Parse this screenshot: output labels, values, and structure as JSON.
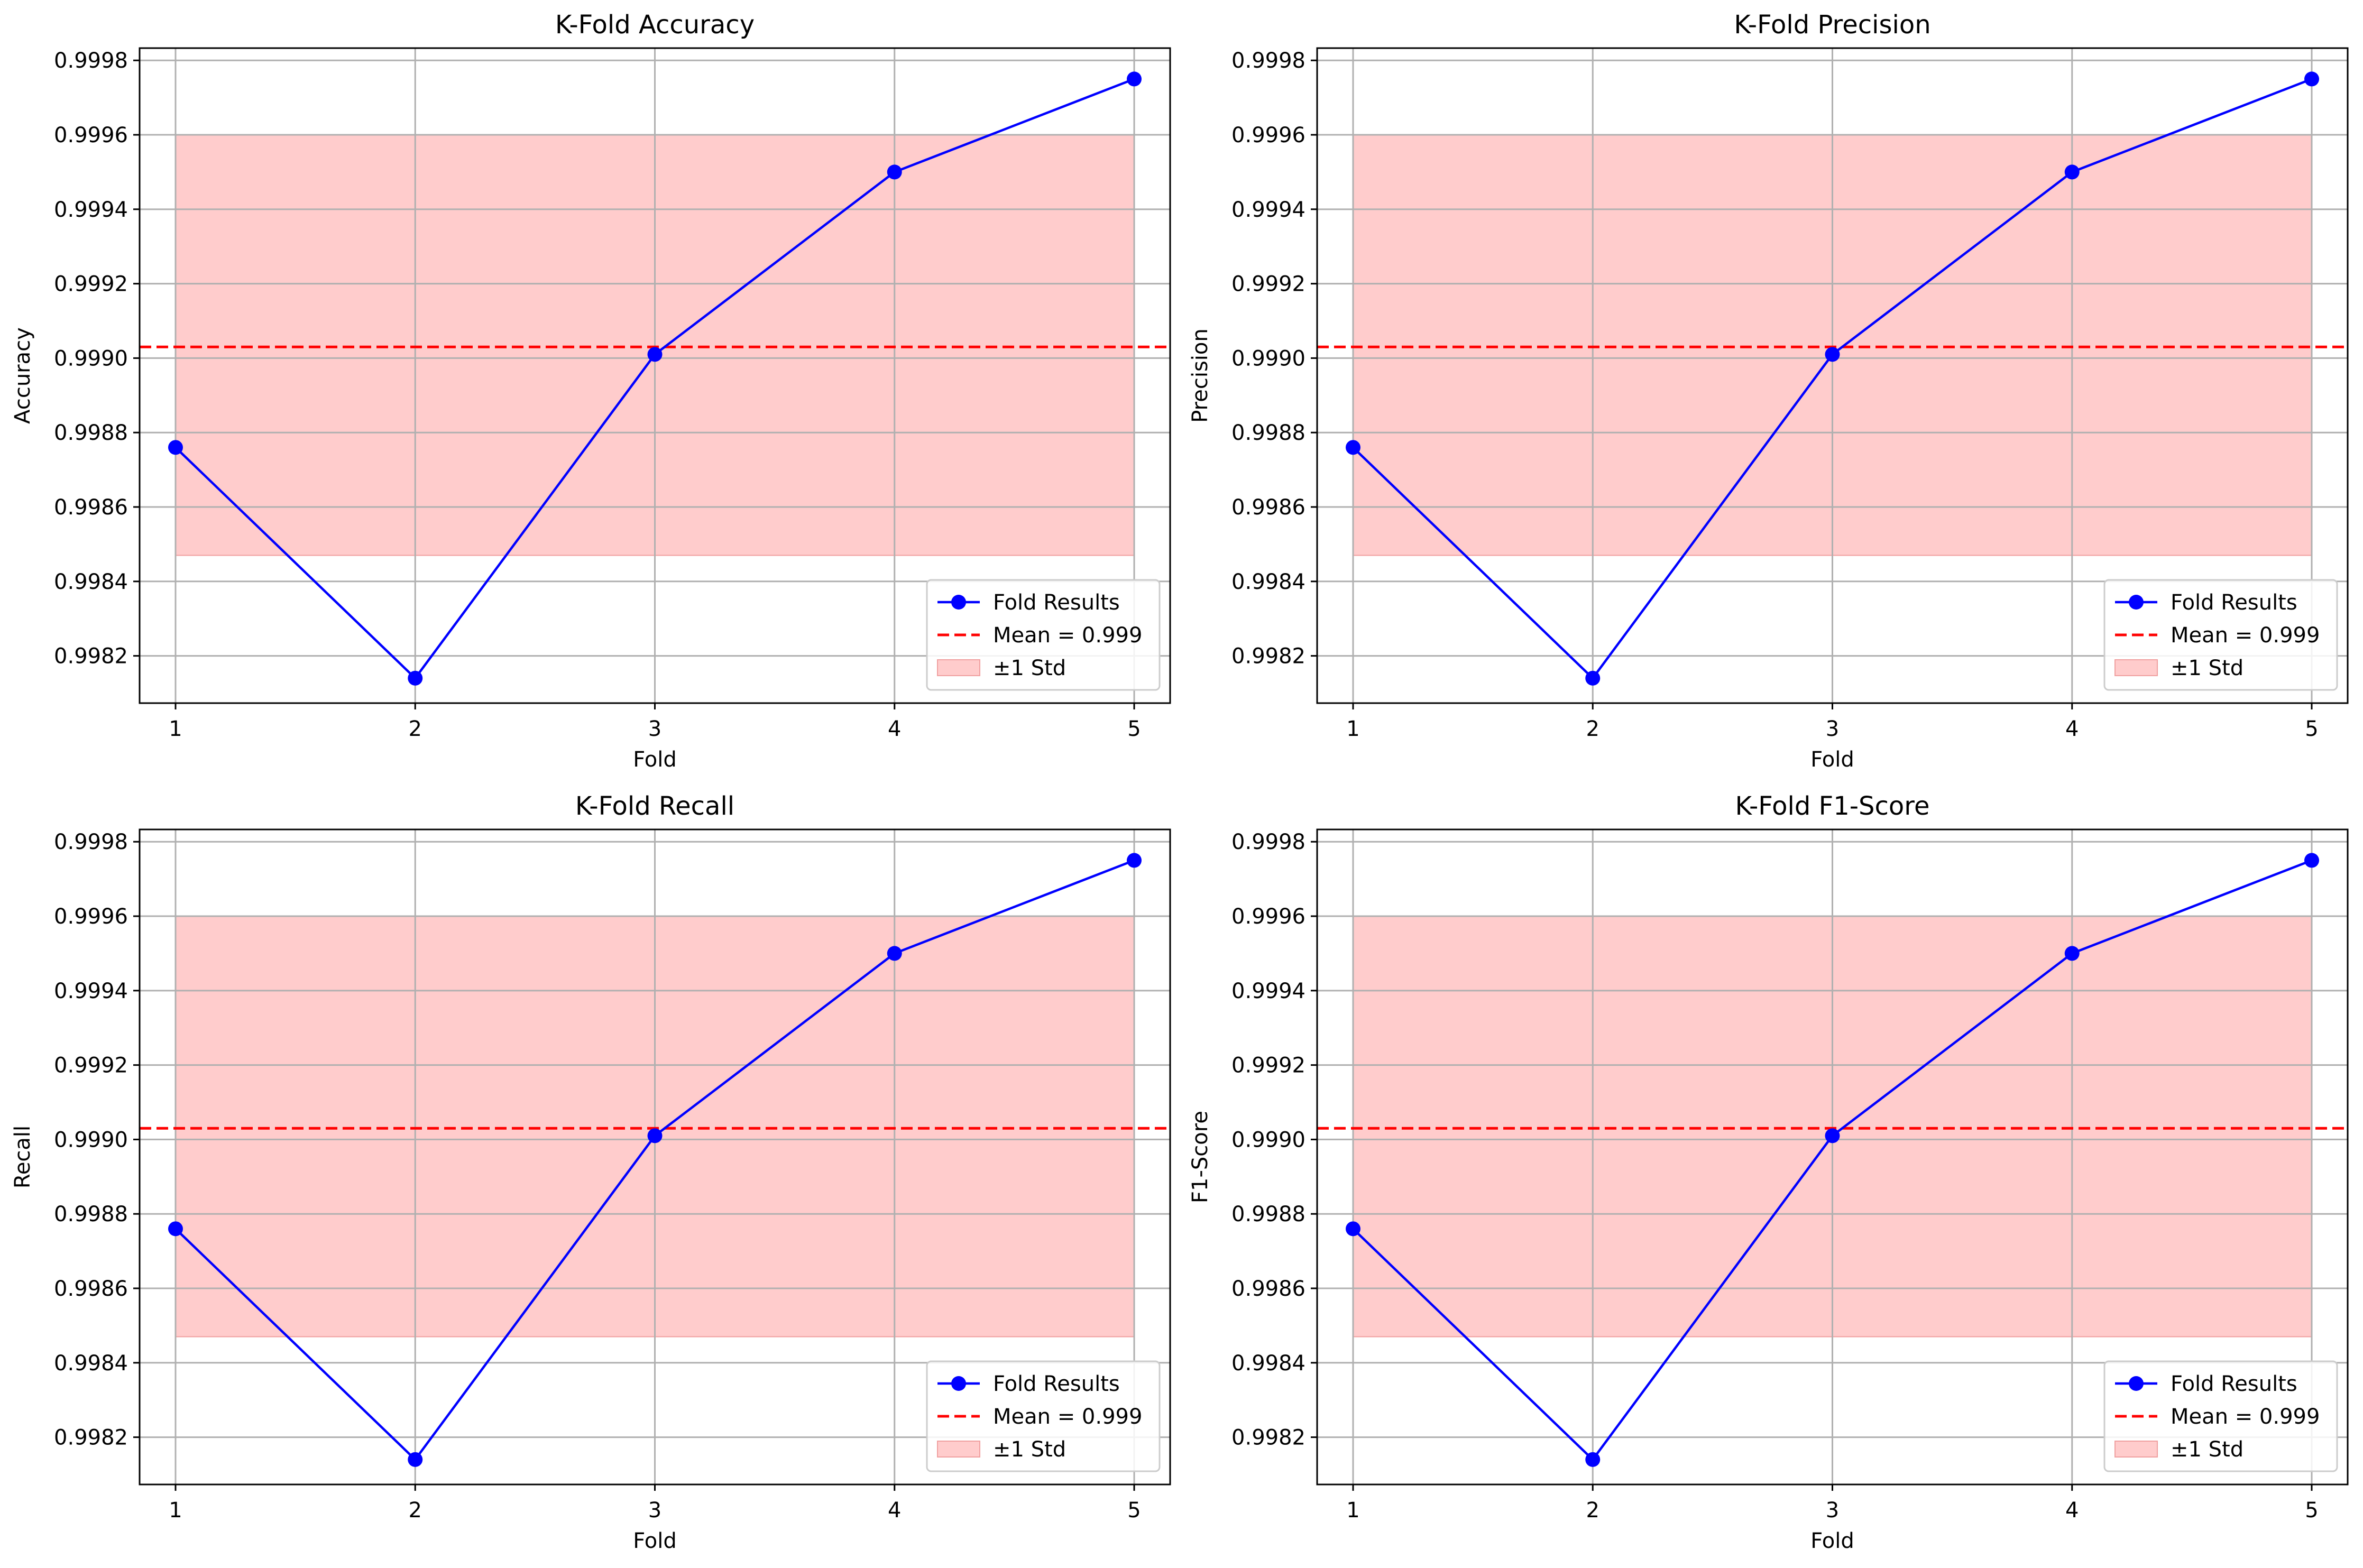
{
  "colors": {
    "line": "#0000ff",
    "mean": "#ff0000",
    "band": "#ffcccc",
    "grid": "#b0b0b0"
  },
  "chart_data": [
    {
      "type": "line",
      "title": "K-Fold Accuracy",
      "xlabel": "Fold",
      "ylabel": "Accuracy",
      "x": [
        1,
        2,
        3,
        4,
        5
      ],
      "series": [
        {
          "name": "Fold Results",
          "values": [
            0.99876,
            0.99814,
            0.99901,
            0.9995,
            0.99975
          ]
        }
      ],
      "mean_line": {
        "label": "Mean = 0.999",
        "value": 0.99903
      },
      "std_band": {
        "label": "±1 Std",
        "lower": 0.99847,
        "upper": 0.9996
      },
      "xticks": [
        "1",
        "2",
        "3",
        "4",
        "5"
      ],
      "yticks": [
        "0.9982",
        "0.9984",
        "0.9986",
        "0.9988",
        "0.9990",
        "0.9992",
        "0.9994",
        "0.9996",
        "0.9998"
      ],
      "xlim": [
        0.85,
        5.15
      ],
      "ylim": [
        0.998073,
        0.999833
      ],
      "grid": true,
      "legend": "lower right"
    },
    {
      "type": "line",
      "title": "K-Fold Precision",
      "xlabel": "Fold",
      "ylabel": "Precision",
      "x": [
        1,
        2,
        3,
        4,
        5
      ],
      "series": [
        {
          "name": "Fold Results",
          "values": [
            0.99876,
            0.99814,
            0.99901,
            0.9995,
            0.99975
          ]
        }
      ],
      "mean_line": {
        "label": "Mean = 0.999",
        "value": 0.99903
      },
      "std_band": {
        "label": "±1 Std",
        "lower": 0.99847,
        "upper": 0.9996
      },
      "xticks": [
        "1",
        "2",
        "3",
        "4",
        "5"
      ],
      "yticks": [
        "0.9982",
        "0.9984",
        "0.9986",
        "0.9988",
        "0.9990",
        "0.9992",
        "0.9994",
        "0.9996",
        "0.9998"
      ],
      "xlim": [
        0.85,
        5.15
      ],
      "ylim": [
        0.998073,
        0.999833
      ],
      "grid": true,
      "legend": "lower right"
    },
    {
      "type": "line",
      "title": "K-Fold Recall",
      "xlabel": "Fold",
      "ylabel": "Recall",
      "x": [
        1,
        2,
        3,
        4,
        5
      ],
      "series": [
        {
          "name": "Fold Results",
          "values": [
            0.99876,
            0.99814,
            0.99901,
            0.9995,
            0.99975
          ]
        }
      ],
      "mean_line": {
        "label": "Mean = 0.999",
        "value": 0.99903
      },
      "std_band": {
        "label": "±1 Std",
        "lower": 0.99847,
        "upper": 0.9996
      },
      "xticks": [
        "1",
        "2",
        "3",
        "4",
        "5"
      ],
      "yticks": [
        "0.9982",
        "0.9984",
        "0.9986",
        "0.9988",
        "0.9990",
        "0.9992",
        "0.9994",
        "0.9996",
        "0.9998"
      ],
      "xlim": [
        0.85,
        5.15
      ],
      "ylim": [
        0.998073,
        0.999833
      ],
      "grid": true,
      "legend": "lower right"
    },
    {
      "type": "line",
      "title": "K-Fold F1-Score",
      "xlabel": "Fold",
      "ylabel": "F1-Score",
      "x": [
        1,
        2,
        3,
        4,
        5
      ],
      "series": [
        {
          "name": "Fold Results",
          "values": [
            0.99876,
            0.99814,
            0.99901,
            0.9995,
            0.99975
          ]
        }
      ],
      "mean_line": {
        "label": "Mean = 0.999",
        "value": 0.99903
      },
      "std_band": {
        "label": "±1 Std",
        "lower": 0.99847,
        "upper": 0.9996
      },
      "xticks": [
        "1",
        "2",
        "3",
        "4",
        "5"
      ],
      "yticks": [
        "0.9982",
        "0.9984",
        "0.9986",
        "0.9988",
        "0.9990",
        "0.9992",
        "0.9994",
        "0.9996",
        "0.9998"
      ],
      "xlim": [
        0.85,
        5.15
      ],
      "ylim": [
        0.998073,
        0.999833
      ],
      "grid": true,
      "legend": "lower right"
    }
  ]
}
